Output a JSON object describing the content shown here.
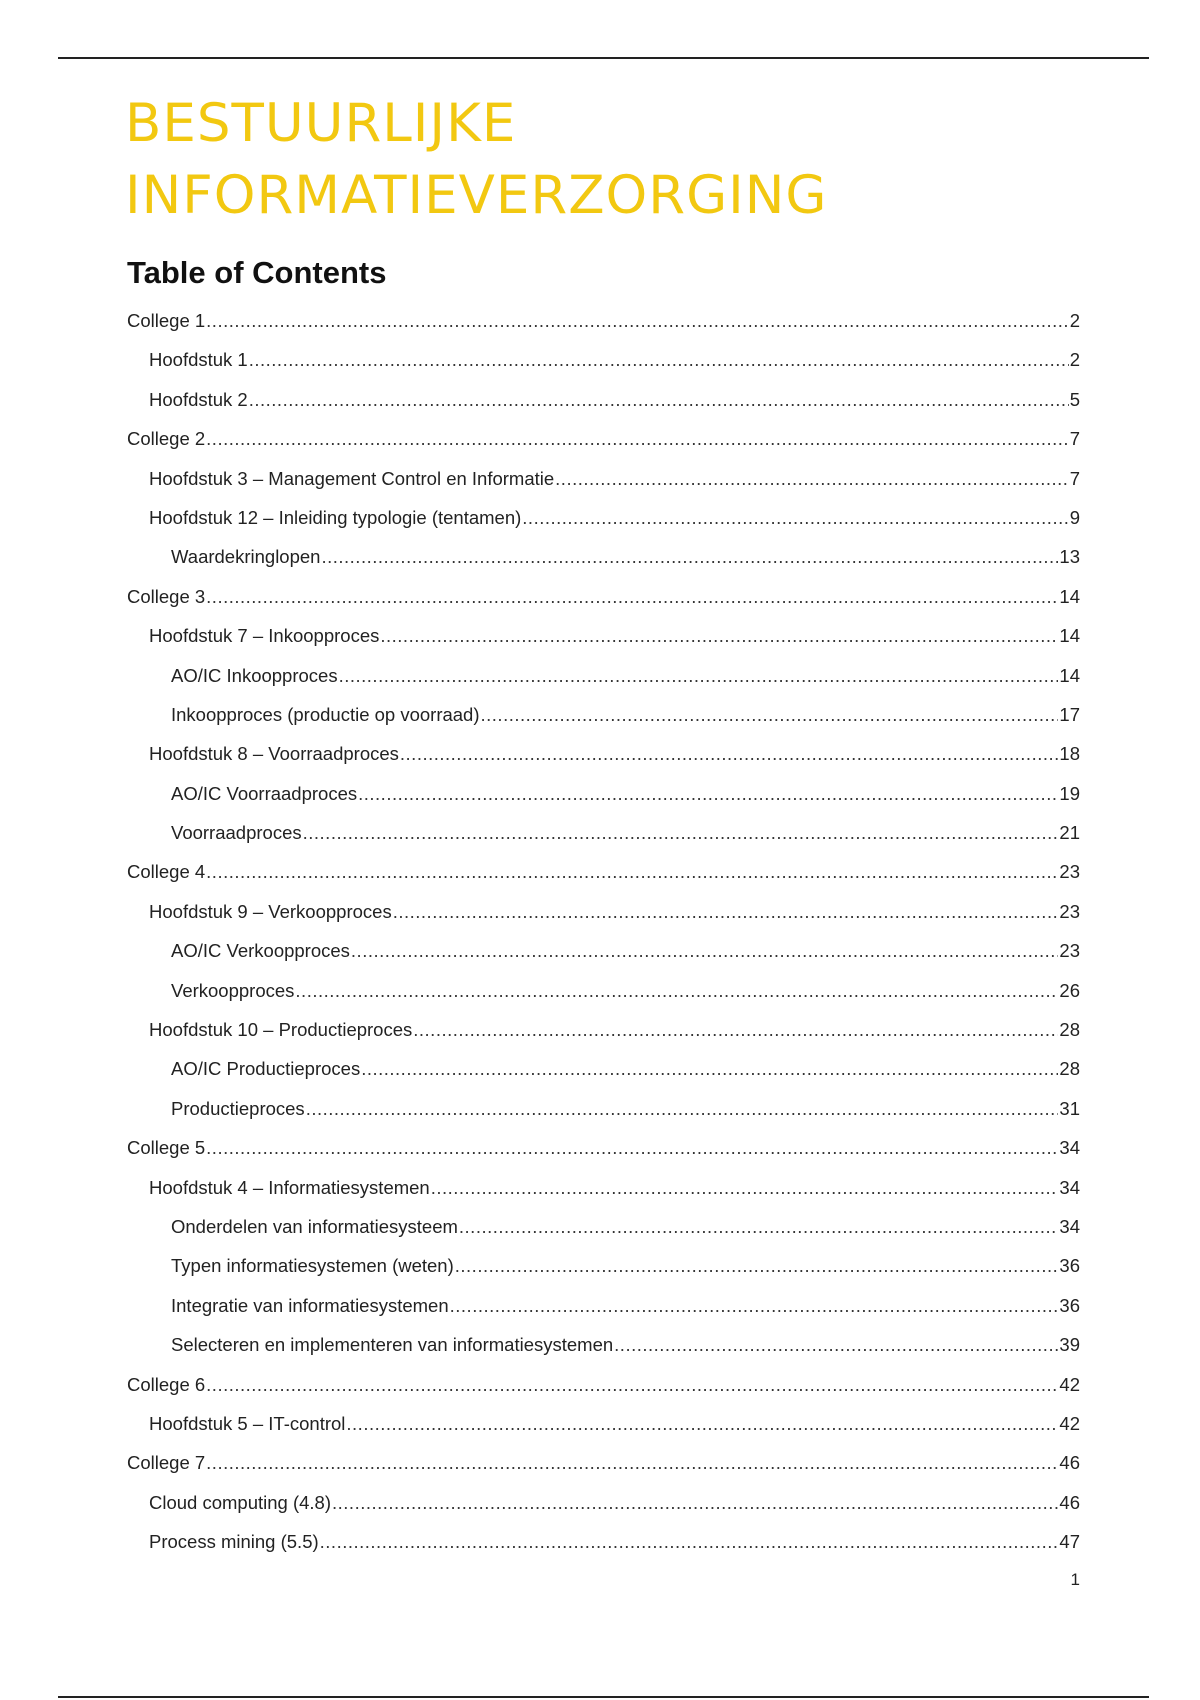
{
  "document": {
    "title_line1": "BESTUURLIJKE",
    "title_line2": "INFORMATIEVERZORGING",
    "title_color": "#f2c811",
    "toc_heading": "Table of Contents",
    "page_number": "1"
  },
  "toc": [
    {
      "label": "College 1",
      "page": "2",
      "level": 1
    },
    {
      "label": "Hoofdstuk 1",
      "page": "2",
      "level": 2
    },
    {
      "label": "Hoofdstuk 2",
      "page": "5",
      "level": 2
    },
    {
      "label": "College 2",
      "page": "7",
      "level": 1
    },
    {
      "label": "Hoofdstuk 3 – Management Control en Informatie",
      "page": "7",
      "level": 2
    },
    {
      "label": "Hoofdstuk 12 – Inleiding typologie (tentamen)",
      "page": "9",
      "level": 2
    },
    {
      "label": "Waardekringlopen",
      "page": "13",
      "level": 3
    },
    {
      "label": "College 3",
      "page": "14",
      "level": 1
    },
    {
      "label": "Hoofdstuk 7 – Inkoopproces",
      "page": "14",
      "level": 2
    },
    {
      "label": "AO/IC Inkoopproces",
      "page": "14",
      "level": 3
    },
    {
      "label": "Inkoopproces (productie op voorraad)",
      "page": "17",
      "level": 3
    },
    {
      "label": "Hoofdstuk 8 – Voorraadproces",
      "page": "18",
      "level": 2
    },
    {
      "label": "AO/IC Voorraadproces",
      "page": "19",
      "level": 3
    },
    {
      "label": "Voorraadproces",
      "page": "21",
      "level": 3
    },
    {
      "label": "College 4",
      "page": "23",
      "level": 1
    },
    {
      "label": "Hoofdstuk 9 – Verkoopproces",
      "page": "23",
      "level": 2
    },
    {
      "label": "AO/IC Verkoopproces",
      "page": "23",
      "level": 3
    },
    {
      "label": "Verkoopproces",
      "page": "26",
      "level": 3
    },
    {
      "label": "Hoofdstuk 10 – Productieproces",
      "page": "28",
      "level": 2
    },
    {
      "label": "AO/IC Productieproces",
      "page": "28",
      "level": 3
    },
    {
      "label": "Productieproces",
      "page": "31",
      "level": 3
    },
    {
      "label": "College 5",
      "page": "34",
      "level": 1
    },
    {
      "label": "Hoofdstuk 4 – Informatiesystemen",
      "page": "34",
      "level": 2
    },
    {
      "label": "Onderdelen van informatiesysteem",
      "page": "34",
      "level": 3
    },
    {
      "label": "Typen informatiesystemen (weten)",
      "page": "36",
      "level": 3
    },
    {
      "label": "Integratie van informatiesystemen",
      "page": "36",
      "level": 3
    },
    {
      "label": "Selecteren en implementeren van informatiesystemen",
      "page": "39",
      "level": 3
    },
    {
      "label": "College 6",
      "page": "42",
      "level": 1
    },
    {
      "label": "Hoofdstuk 5 – IT-control",
      "page": "42",
      "level": 2
    },
    {
      "label": "College 7",
      "page": "46",
      "level": 1
    },
    {
      "label": "Cloud computing (4.8)",
      "page": "46",
      "level": 2
    },
    {
      "label": "Process mining (5.5)",
      "page": "47",
      "level": 2
    }
  ]
}
